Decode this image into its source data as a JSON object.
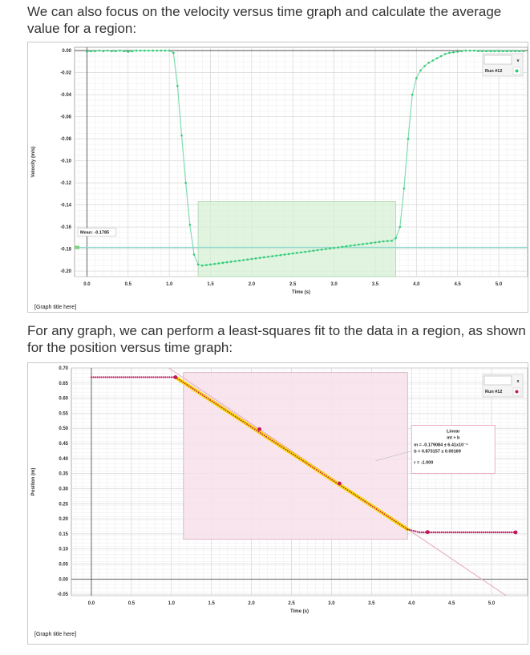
{
  "paragraphs": {
    "p1": "We can also focus on the velocity versus time graph and calculate the average value for a region:",
    "p2": "For any graph, we can perform a least-squares fit to the data in a region, as shown for the position versus time graph:"
  },
  "chart_data": [
    {
      "type": "line",
      "title": "",
      "graph_title_placeholder": "[Graph title here]",
      "xlabel": "Time (s)",
      "ylabel": "Velocity (m/s)",
      "xlim": [
        -0.15,
        5.35
      ],
      "ylim": [
        -0.205,
        0.003
      ],
      "x_ticks": [
        0.0,
        0.5,
        1.0,
        1.5,
        2.0,
        2.5,
        3.0,
        3.5,
        4.0,
        4.5,
        5.0
      ],
      "x_tick_labels": [
        "0.0",
        "0.5",
        "1.0",
        "1.5",
        "2.0",
        "2.5",
        "3.0",
        "3.5",
        "4.0",
        "4.5",
        "5.0"
      ],
      "y_ticks": [
        0.0,
        -0.02,
        -0.04,
        -0.06,
        -0.08,
        -0.1,
        -0.12,
        -0.14,
        -0.16,
        -0.18,
        -0.2
      ],
      "y_tick_labels": [
        "0.00",
        "-0.02",
        "-0.04",
        "-0.06",
        "-0.08",
        "-0.10",
        "-0.12",
        "-0.14",
        "-0.16",
        "-0.18",
        "-0.20"
      ],
      "grid": true,
      "series": [
        {
          "name": "Run #12",
          "color": "#2ecc71",
          "line_color": "#7fdcb0",
          "points": [
            [
              0.0,
              -0.001
            ],
            [
              0.05,
              -0.0005
            ],
            [
              0.1,
              -0.0005
            ],
            [
              0.15,
              0.0
            ],
            [
              0.2,
              -0.0005
            ],
            [
              0.25,
              0.0
            ],
            [
              0.3,
              -0.0005
            ],
            [
              0.35,
              -0.0005
            ],
            [
              0.4,
              0.0
            ],
            [
              0.45,
              -0.0005
            ],
            [
              0.5,
              -0.001
            ],
            [
              0.55,
              -0.0005
            ],
            [
              0.6,
              0.0
            ],
            [
              0.65,
              0.0
            ],
            [
              0.7,
              0.0
            ],
            [
              0.75,
              0.0
            ],
            [
              0.8,
              0.0
            ],
            [
              0.85,
              0.0
            ],
            [
              0.9,
              0.0
            ],
            [
              0.95,
              0.0
            ],
            [
              1.0,
              0.0
            ],
            [
              1.05,
              -0.002
            ],
            [
              1.1,
              -0.032
            ],
            [
              1.15,
              -0.077
            ],
            [
              1.2,
              -0.12
            ],
            [
              1.25,
              -0.158
            ],
            [
              1.3,
              -0.185
            ],
            [
              1.35,
              -0.194
            ],
            [
              1.4,
              -0.195
            ],
            [
              1.45,
              -0.1945
            ],
            [
              1.5,
              -0.194
            ],
            [
              1.55,
              -0.1935
            ],
            [
              1.6,
              -0.193
            ],
            [
              1.65,
              -0.1925
            ],
            [
              1.7,
              -0.192
            ],
            [
              1.75,
              -0.1915
            ],
            [
              1.8,
              -0.191
            ],
            [
              1.85,
              -0.1905
            ],
            [
              1.9,
              -0.19
            ],
            [
              1.95,
              -0.1895
            ],
            [
              2.0,
              -0.189
            ],
            [
              2.05,
              -0.1885
            ],
            [
              2.1,
              -0.188
            ],
            [
              2.15,
              -0.1875
            ],
            [
              2.2,
              -0.187
            ],
            [
              2.25,
              -0.1865
            ],
            [
              2.3,
              -0.186
            ],
            [
              2.35,
              -0.1855
            ],
            [
              2.4,
              -0.185
            ],
            [
              2.45,
              -0.1845
            ],
            [
              2.5,
              -0.184
            ],
            [
              2.55,
              -0.1835
            ],
            [
              2.6,
              -0.183
            ],
            [
              2.65,
              -0.1825
            ],
            [
              2.7,
              -0.182
            ],
            [
              2.75,
              -0.1815
            ],
            [
              2.8,
              -0.181
            ],
            [
              2.85,
              -0.1805
            ],
            [
              2.9,
              -0.18
            ],
            [
              2.95,
              -0.1795
            ],
            [
              3.0,
              -0.179
            ],
            [
              3.05,
              -0.1785
            ],
            [
              3.1,
              -0.178
            ],
            [
              3.15,
              -0.1775
            ],
            [
              3.2,
              -0.177
            ],
            [
              3.25,
              -0.1765
            ],
            [
              3.3,
              -0.176
            ],
            [
              3.35,
              -0.1755
            ],
            [
              3.4,
              -0.175
            ],
            [
              3.45,
              -0.1745
            ],
            [
              3.5,
              -0.174
            ],
            [
              3.55,
              -0.1735
            ],
            [
              3.6,
              -0.173
            ],
            [
              3.65,
              -0.1728
            ],
            [
              3.7,
              -0.1725
            ],
            [
              3.75,
              -0.17
            ],
            [
              3.8,
              -0.16
            ],
            [
              3.85,
              -0.125
            ],
            [
              3.9,
              -0.08
            ],
            [
              3.95,
              -0.04
            ],
            [
              4.0,
              -0.025
            ],
            [
              4.05,
              -0.018
            ],
            [
              4.1,
              -0.014
            ],
            [
              4.15,
              -0.011
            ],
            [
              4.2,
              -0.009
            ],
            [
              4.25,
              -0.007
            ],
            [
              4.3,
              -0.005
            ],
            [
              4.35,
              -0.003
            ],
            [
              4.4,
              -0.002
            ],
            [
              4.45,
              -0.0015
            ],
            [
              4.5,
              -0.001
            ],
            [
              4.55,
              -0.0005
            ],
            [
              4.6,
              0.0
            ],
            [
              4.65,
              0.0
            ],
            [
              4.7,
              0.0
            ],
            [
              4.75,
              -0.0005
            ],
            [
              4.8,
              -0.0005
            ],
            [
              4.85,
              -0.0005
            ],
            [
              4.9,
              -0.0005
            ],
            [
              4.95,
              -0.0005
            ],
            [
              5.0,
              -0.0005
            ],
            [
              5.05,
              -0.0005
            ],
            [
              5.1,
              -0.0005
            ],
            [
              5.15,
              -0.0005
            ],
            [
              5.2,
              -0.0005
            ],
            [
              5.25,
              -0.0005
            ],
            [
              5.3,
              -0.0005
            ]
          ]
        }
      ],
      "selection_region": {
        "x": [
          1.35,
          3.75
        ],
        "y": [
          -0.205,
          -0.137
        ],
        "color": "#d6f0d6"
      },
      "mean": {
        "label": "Mean: -0.1785",
        "value": -0.1785,
        "line_color": "#8fd6cc"
      },
      "legend": {
        "label": "Run #12",
        "placement": "top-right",
        "dropdown_symbol": "v"
      }
    },
    {
      "type": "scatter",
      "title": "",
      "graph_title_placeholder": "[Graph title here]",
      "xlabel": "Time (s)",
      "ylabel": "Position (m)",
      "xlim": [
        -0.25,
        5.45
      ],
      "ylim": [
        -0.055,
        0.7
      ],
      "x_ticks": [
        0.0,
        0.5,
        1.0,
        1.5,
        2.0,
        2.5,
        3.0,
        3.5,
        4.0,
        4.5,
        5.0
      ],
      "x_tick_labels": [
        "0.0",
        "0.5",
        "1.0",
        "1.5",
        "2.0",
        "2.5",
        "3.0",
        "3.5",
        "4.0",
        "4.5",
        "5.0"
      ],
      "y_ticks": [
        0.7,
        0.65,
        0.6,
        0.55,
        0.5,
        0.45,
        0.4,
        0.35,
        0.3,
        0.25,
        0.2,
        0.15,
        0.1,
        0.05,
        0.0,
        -0.05
      ],
      "y_tick_labels": [
        "0.70",
        "0.65",
        "0.60",
        "0.55",
        "0.50",
        "0.45",
        "0.40",
        "0.35",
        "0.30",
        "0.25",
        "0.20",
        "0.15",
        "0.10",
        "0.05",
        "0.00",
        "-0.05"
      ],
      "grid": true,
      "series": [
        {
          "name": "Run #12",
          "color": "#c2185b",
          "fit_highlight_color": "#f5d90a",
          "flat_start": {
            "x": [
              0.0,
              1.05
            ],
            "y": 0.6695
          },
          "fit_range": {
            "x": [
              1.05,
              3.95
            ],
            "y_start": 0.6695,
            "y_end": 0.165
          },
          "flat_end": {
            "x": [
              3.95,
              5.3
            ],
            "y": 0.155
          },
          "large_markers": [
            [
              1.05,
              0.6695
            ],
            [
              2.1,
              0.497
            ],
            [
              3.1,
              0.317
            ],
            [
              4.2,
              0.156
            ],
            [
              5.3,
              0.155
            ]
          ]
        }
      ],
      "selection_region": {
        "x": [
          1.15,
          3.95
        ],
        "y": [
          0.132,
          0.685
        ],
        "color": "#f7e1ea"
      },
      "fit": {
        "type": "Linear",
        "equation": "mt + b",
        "m_text": "m = -0.179084 ± 6.41x10⁻⁴",
        "b_text": "b = 0.873157 ± 0.00169",
        "r_text": "r = -1.000",
        "m": -0.179084,
        "b": 0.873157,
        "line_color": "#e6a8bf"
      },
      "legend": {
        "label": "Run #12",
        "placement": "top-right",
        "close_symbol": "x"
      }
    }
  ]
}
